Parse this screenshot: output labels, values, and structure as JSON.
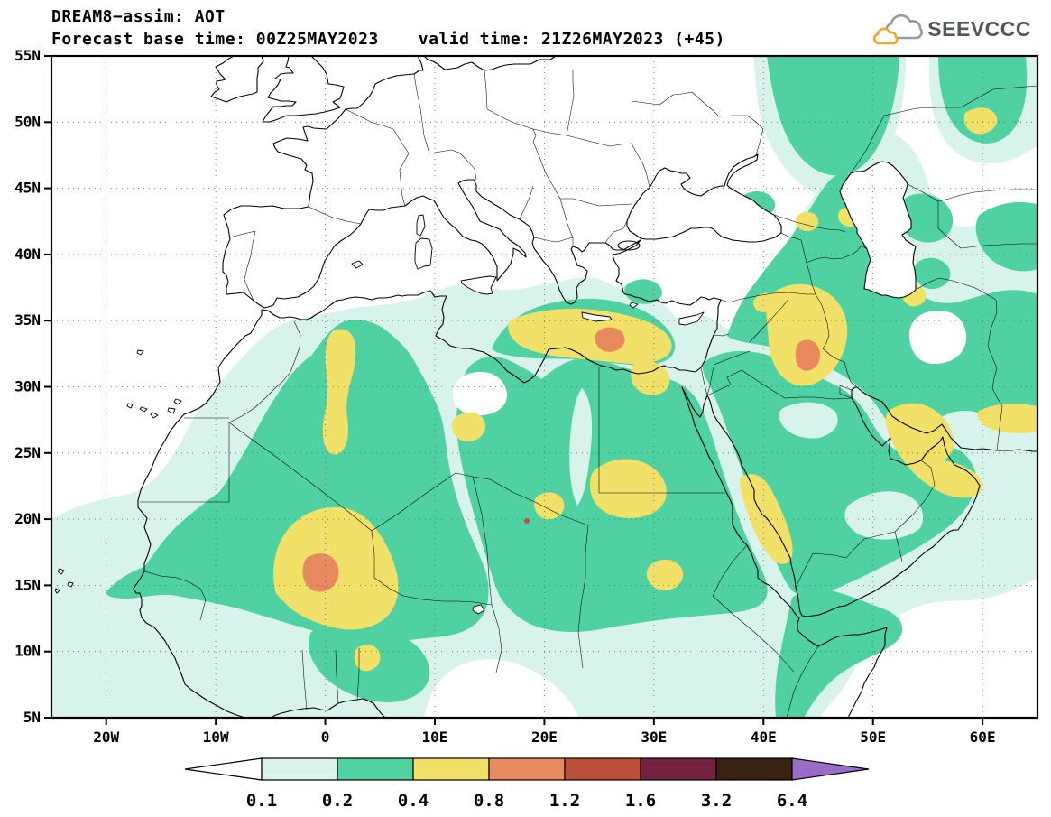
{
  "header": {
    "title": "DREAM8−assim: AOT",
    "base_time": "Forecast base time: 00Z25MAY2023",
    "valid_time": "valid time: 21Z26MAY2023 (+45)",
    "logo_text": "SEEVCCC"
  },
  "map": {
    "lat_ticks": [
      "55N",
      "50N",
      "45N",
      "40N",
      "35N",
      "30N",
      "25N",
      "20N",
      "15N",
      "10N",
      "5N"
    ],
    "lon_ticks": [
      "20W",
      "10W",
      "0",
      "10E",
      "20E",
      "30E",
      "40E",
      "50E",
      "60E"
    ]
  },
  "colorbar": {
    "labels": [
      "0.1",
      "0.2",
      "0.4",
      "0.8",
      "1.2",
      "1.6",
      "3.2",
      "6.4"
    ],
    "segment_colors": [
      "#ffffff",
      "#d8f3ec",
      "#4fd1a1",
      "#f1e168",
      "#e88a5e",
      "#bc4f38",
      "#74203f",
      "#362410",
      "#9a6cc6"
    ]
  },
  "chart_data": {
    "type": "filled-contour-map",
    "title": "DREAM8−assim: AOT",
    "variable": "AOT (aerosol optical thickness)",
    "model": "DREAM8-assim",
    "forecast_base_time": "00Z25MAY2023",
    "valid_time": "21Z26MAY2023",
    "forecast_hour": 45,
    "lat_range": [
      "5N",
      "55N"
    ],
    "lon_range": [
      "25W",
      "65E"
    ],
    "grid": "dotted, 10 deg lon x 5 deg lat",
    "legend_position": "bottom",
    "contour_levels": [
      0.1,
      0.2,
      0.4,
      0.8,
      1.2,
      1.6,
      3.2,
      6.4
    ],
    "level_colors": {
      "below_0.1": "#ffffff",
      "0.1-0.2": "#d8f3ec",
      "0.2-0.4": "#4fd1a1",
      "0.4-0.8": "#f1e168",
      "0.8-1.2": "#e88a5e",
      "1.2-1.6": "#bc4f38",
      "1.6-3.2": "#74203f",
      "3.2-6.4": "#362410",
      "above_6.4": "#9a6cc6"
    },
    "aot_maxima": [
      {
        "region": "Mali / southern Algeria",
        "approx_lon": "0E",
        "approx_lat": "16N",
        "value_range": "0.8-1.2"
      },
      {
        "region": "Mediterranean coast, NE Libya / NW Egypt",
        "approx_lon": "26E",
        "approx_lat": "33.5N",
        "value_range": "0.8-1.2"
      },
      {
        "region": "Central Iraq",
        "approx_lon": "44.5E",
        "approx_lat": "32.5N",
        "value_range": "0.8-1.2"
      }
    ],
    "broad_plumes": [
      {
        "region": "Sahara / Sahel from Atlantic to Red Sea",
        "value_range": "0.2-0.8"
      },
      {
        "region": "Arabian Peninsula, Iraq, Iran, Caucasus",
        "value_range": "0.1-0.8"
      },
      {
        "region": "Atlantic dust outflow west of Senegal/Mauritania",
        "value_range": "0.1-0.4"
      }
    ]
  }
}
